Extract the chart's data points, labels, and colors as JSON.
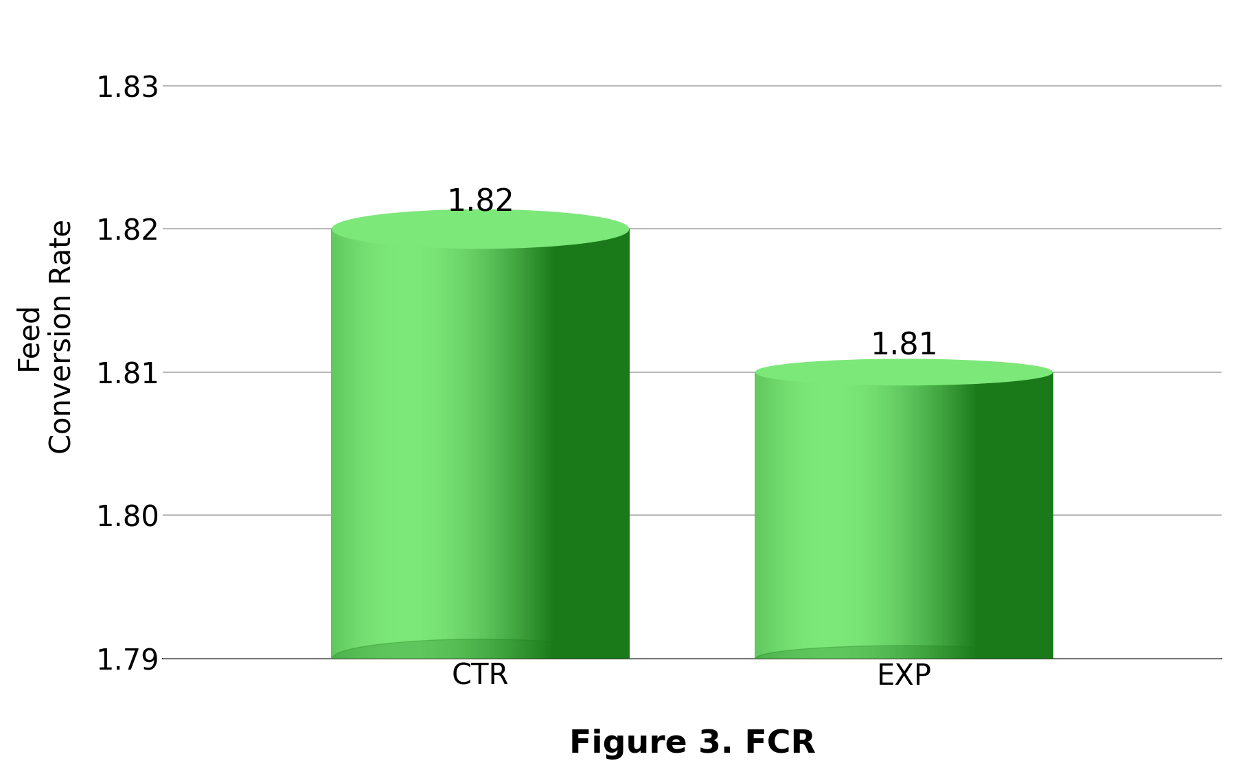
{
  "categories": [
    "CTR",
    "EXP"
  ],
  "values": [
    1.82,
    1.81
  ],
  "bar_labels": [
    "1.82",
    "1.81"
  ],
  "ylabel_line1": "Feed",
  "ylabel_line2": "Conversion Rate",
  "title": "Figure 3. FCR",
  "ylim": [
    1.79,
    1.835
  ],
  "yticks": [
    1.79,
    1.8,
    1.81,
    1.82,
    1.83
  ],
  "ytick_labels": [
    "1.79",
    "1.80",
    "1.81",
    "1.82",
    "1.83"
  ],
  "bar_color_light": "#7de87a",
  "bar_color_mid": "#3cc43a",
  "bar_color_dark": "#1a7a1a",
  "bar_color_edge_dark": "#186018",
  "background_color": "#ffffff",
  "label_fontsize": 32,
  "tick_fontsize": 30,
  "title_fontsize": 34,
  "ylabel_fontsize": 30,
  "bar_width": 0.28,
  "x_positions": [
    0.3,
    0.7
  ],
  "xlim": [
    0.0,
    1.0
  ],
  "grid_color": "#aaaaaa",
  "grid_linewidth": 1.2,
  "bottom_spine_color": "#333333"
}
